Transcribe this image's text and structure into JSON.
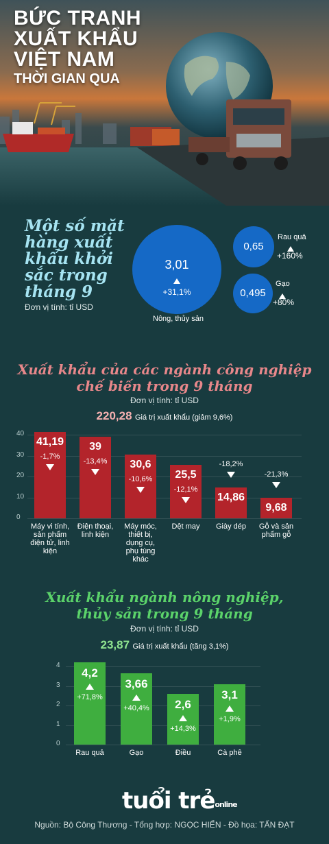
{
  "hero": {
    "title_lines": [
      "BỨC TRANH",
      "XUẤT KHẨU",
      "VIỆT NAM"
    ],
    "subtitle": "THỜI GIAN QUA"
  },
  "section1": {
    "title_lines": [
      "Một số mặt",
      "hàng xuất",
      "khẩu khởi",
      "sắc trong",
      "tháng 9"
    ],
    "unit": "Đơn vị tính: tỉ USD",
    "items": [
      {
        "name": "Nông, thủy sản",
        "value": "3,01",
        "change": "+31,1%"
      },
      {
        "name": "Rau quả",
        "value": "0,65",
        "change": "+160%"
      },
      {
        "name": "Gạo",
        "value": "0,495",
        "change": "+80%"
      }
    ]
  },
  "section2": {
    "title_lines": [
      "Xuất khẩu của các ngành công nghiệp",
      "chế biến trong 9 tháng"
    ],
    "unit": "Đơn vị tính: tỉ USD",
    "total_value": "220,28",
    "total_label": "Giá trị xuất khẩu (giảm 9,6%)",
    "bar_color": "#b3242b"
  },
  "section3": {
    "title_lines": [
      "Xuất khẩu ngành nông nghiệp,",
      "thủy sản trong 9 tháng"
    ],
    "unit": "Đơn vị tính: tỉ USD",
    "total_value": "23,87",
    "total_label": "Giá trị xuất khẩu (tăng 3,1%)",
    "bar_color": "#3fae3f"
  },
  "chart_data": [
    {
      "type": "bar",
      "categories": [
        "Máy vi tính, sản phẩm điện tử, linh kiện",
        "Điện thoại, linh kiện",
        "Máy móc, thiết bị, dụng cụ, phụ tùng khác",
        "Dệt may",
        "Giày dép",
        "Gỗ và sản phẩm gỗ"
      ],
      "values": [
        41.19,
        39,
        30.6,
        25.5,
        14.86,
        9.68
      ],
      "value_labels": [
        "41,19",
        "39",
        "30,6",
        "25,5",
        "14,86",
        "9,68"
      ],
      "change_labels": [
        "-1,7%",
        "-13,4%",
        "-10,6%",
        "-12,1%",
        "-18,2%",
        "-21,3%"
      ],
      "yticks": [
        "0",
        "10",
        "20",
        "30",
        "40"
      ],
      "ylim": [
        0,
        40
      ]
    },
    {
      "type": "bar",
      "categories": [
        "Rau quả",
        "Gạo",
        "Điều",
        "Cà phê"
      ],
      "values": [
        4.2,
        3.66,
        2.6,
        3.1
      ],
      "value_labels": [
        "4,2",
        "3,66",
        "2,6",
        "3,1"
      ],
      "change_labels": [
        "+71,8%",
        "+40,4%",
        "+14,3%",
        "+1,9%"
      ],
      "yticks": [
        "0",
        "1",
        "2",
        "3",
        "4"
      ],
      "ylim": [
        0,
        4
      ]
    }
  ],
  "logo": {
    "brand": "tuổi trẻ",
    "sub": "online"
  },
  "footer": "Nguồn: Bộ Công Thương - Tổng hợp: NGỌC HIỂN - Đồ họa: TẤN ĐẠT"
}
